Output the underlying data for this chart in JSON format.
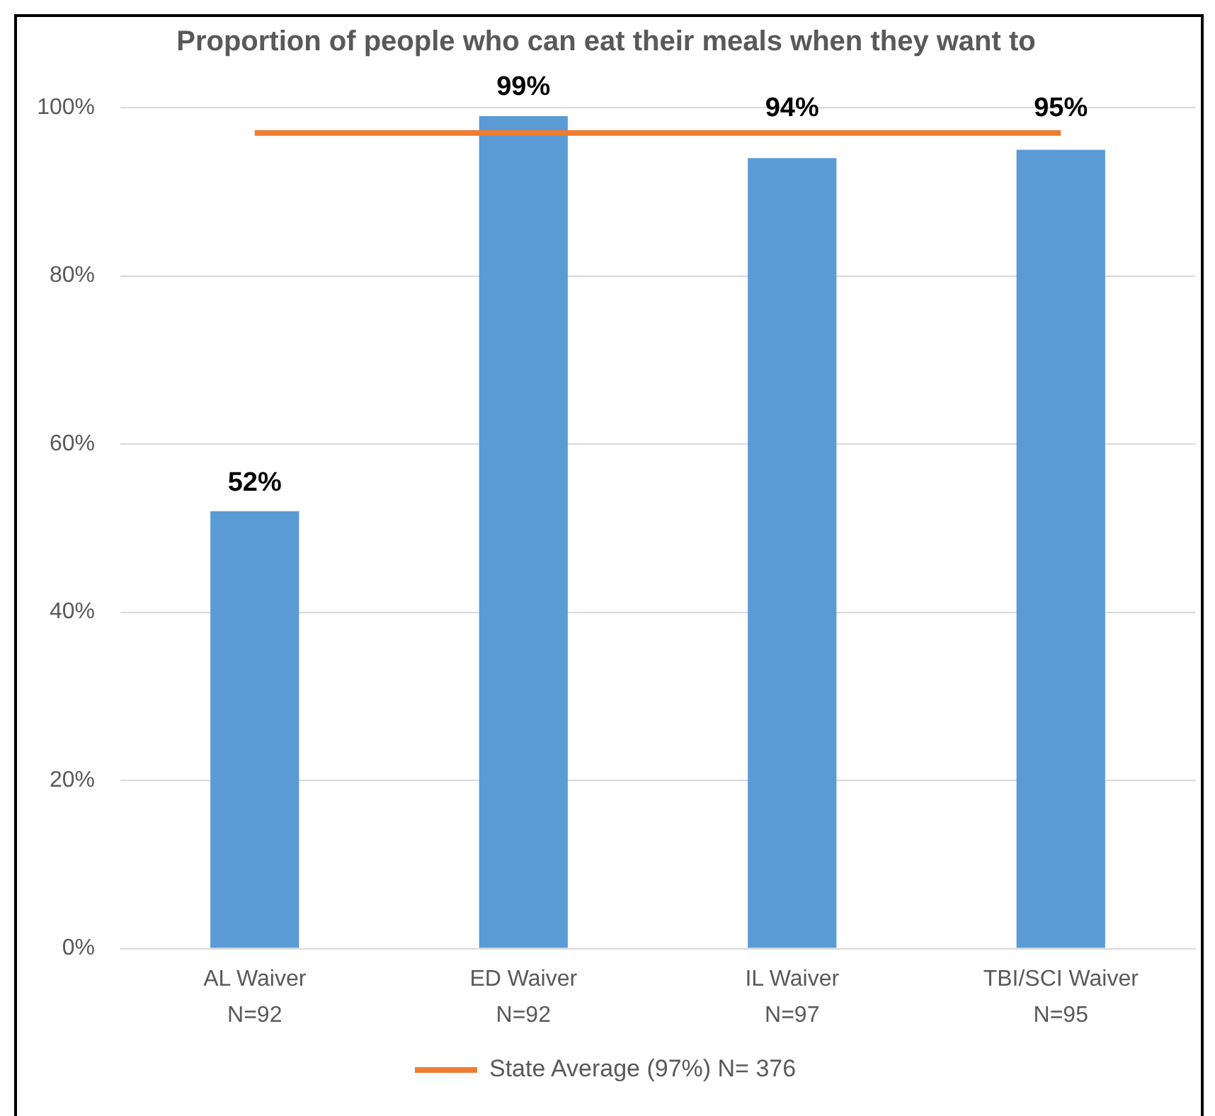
{
  "chart_data": {
    "type": "bar",
    "title": "Proportion of people who can eat their meals when they want to",
    "categories": [
      "AL Waiver\nN=92",
      "ED Waiver\nN=92",
      "IL Waiver\nN=97",
      "TBI/SCI Waiver\nN=95"
    ],
    "series": [
      {
        "color": "#5b9bd5",
        "values": [
          52,
          99,
          94,
          95
        ],
        "value_labels": [
          "52%",
          "99%",
          "94%",
          "95%"
        ]
      },
      {
        "name": "State Average (97%) N= 376",
        "type": "line",
        "color": "#ed7d31",
        "values": [
          97,
          97,
          97,
          97
        ]
      }
    ],
    "ylim": [
      0,
      100
    ],
    "yticks": [
      {
        "value": 0,
        "label": "0%"
      },
      {
        "value": 20,
        "label": "20%"
      },
      {
        "value": 40,
        "label": "40%"
      },
      {
        "value": 60,
        "label": "60%"
      },
      {
        "value": 80,
        "label": "80%"
      },
      {
        "value": 100,
        "label": "100%"
      }
    ],
    "grid": "y",
    "legend": "bottom"
  }
}
